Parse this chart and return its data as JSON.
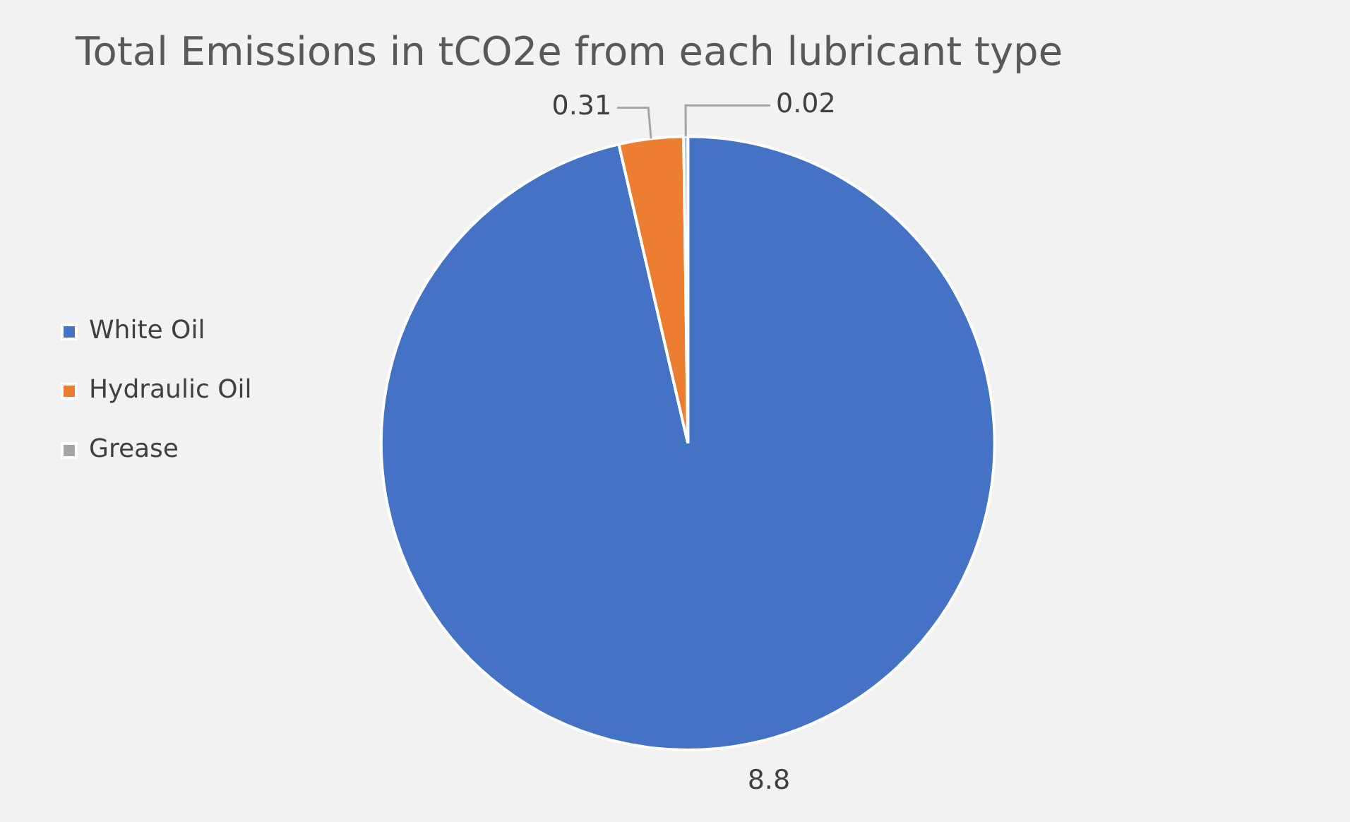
{
  "chart_data": {
    "type": "pie",
    "title": "Total Emissions in tCO2e from each lubricant type",
    "categories": [
      "White Oil",
      "Hydraulic Oil",
      "Grease"
    ],
    "values": [
      8.8,
      0.31,
      0.02
    ],
    "colors": [
      "#4472c4",
      "#ed7d31",
      "#a5a5a5"
    ],
    "data_labels": true,
    "legend": "left"
  }
}
